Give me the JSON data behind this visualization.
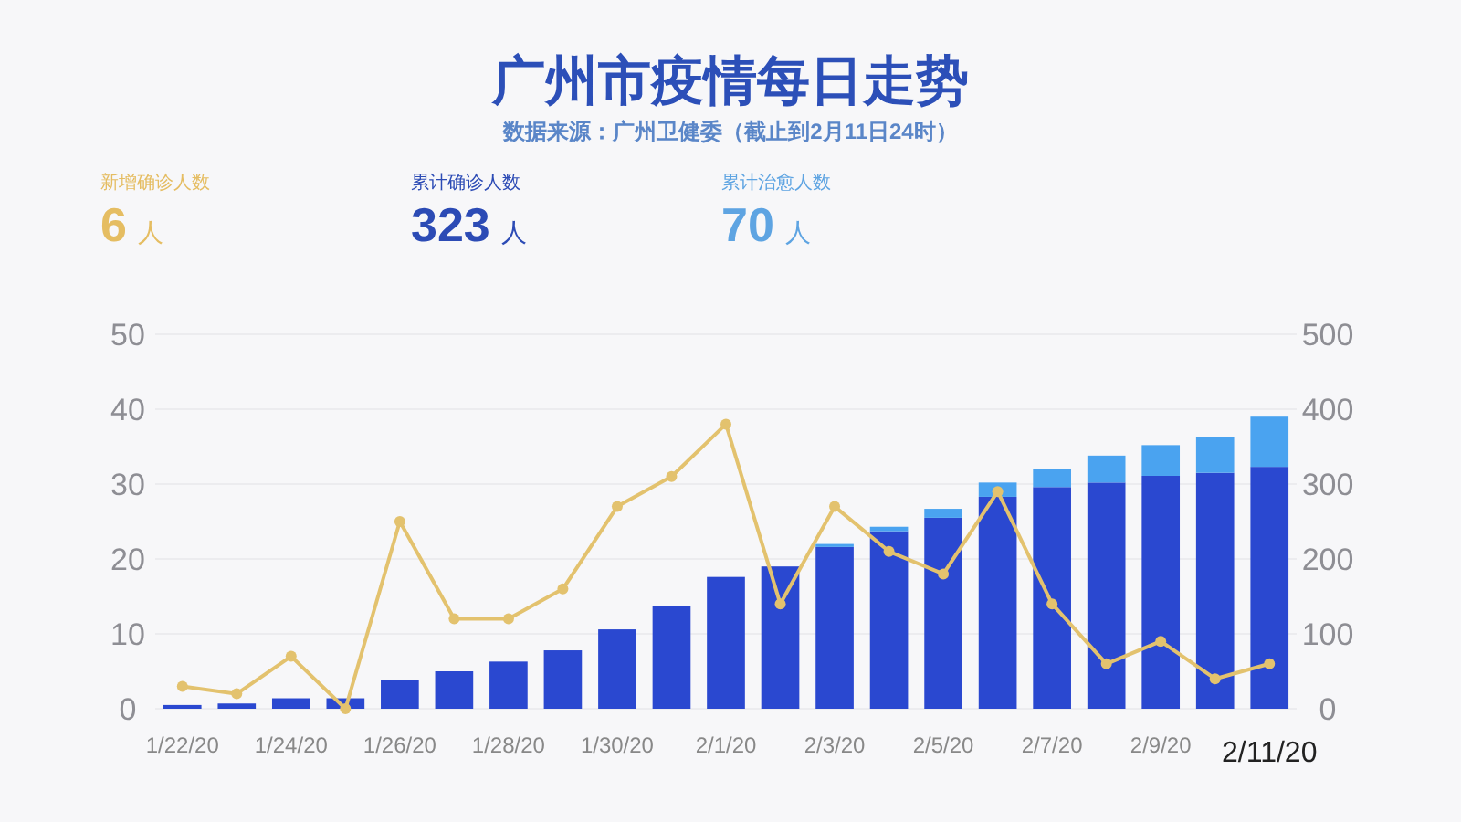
{
  "chart_data": [
    {
      "type": "other",
      "title": "广州市疫情每日走势",
      "subtitle": "数据来源：广州卫健委（截止到2月11日24时）",
      "annotations": [
        "新增确诊人数",
        "6 人",
        "累计确诊人数",
        "323 人",
        "累计治愈人数",
        "70 人"
      ]
    },
    {
      "type": "bar",
      "stacked": true,
      "categories": [
        "1/22/20",
        null,
        "1/24/20",
        null,
        "1/26/20",
        null,
        "1/28/20",
        null,
        "1/30/20",
        null,
        "2/1/20",
        null,
        "2/3/20",
        null,
        "2/5/20",
        null,
        "2/7/20",
        null,
        "2/9/20",
        null,
        "2/11/20"
      ],
      "series": [
        {
          "color": "#2a48d0",
          "axis": "y2",
          "values": [
            5,
            7,
            14,
            14,
            39,
            50,
            63,
            78,
            106,
            137,
            176,
            190,
            216,
            237,
            255,
            283,
            296,
            302,
            311,
            315,
            323
          ]
        },
        {
          "color": "#4aa3f0",
          "axis": "y2",
          "values": [
            0,
            0,
            0,
            0,
            0,
            0,
            0,
            0,
            0,
            0,
            0,
            0,
            4,
            6,
            12,
            19,
            24,
            36,
            41,
            48,
            67
          ]
        },
        {
          "type": "line",
          "color": "#e3c26e",
          "axis": "y",
          "marker": "circle",
          "values": [
            3,
            2,
            7,
            0,
            25,
            12,
            12,
            16,
            27,
            31,
            38,
            14,
            27,
            21,
            18,
            29,
            14,
            6,
            9,
            4,
            6
          ]
        }
      ],
      "ylim": [
        0,
        50
      ],
      "yticks": [
        0,
        10,
        20,
        30,
        40,
        50
      ],
      "y2lim": [
        0,
        500
      ],
      "y2ticks": [
        0,
        100,
        200,
        300,
        400,
        500
      ],
      "grid": "y"
    }
  ]
}
